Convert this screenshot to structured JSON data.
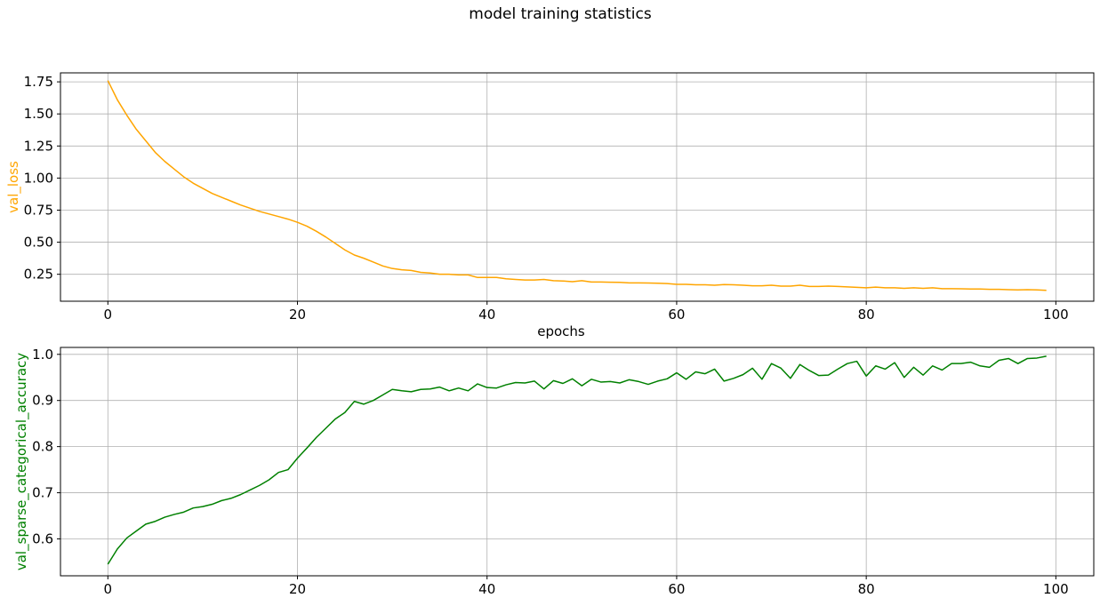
{
  "figure": {
    "suptitle": "model training statistics"
  },
  "chart_data": [
    {
      "type": "line",
      "xlabel": "epochs",
      "ylabel": "val_loss",
      "xlim": [
        -5,
        104
      ],
      "ylim": [
        0.04,
        1.82
      ],
      "xticks": [
        0,
        20,
        40,
        60,
        80,
        100
      ],
      "yticks": [
        0.25,
        0.5,
        0.75,
        1.0,
        1.25,
        1.5,
        1.75
      ],
      "ytick_labels": [
        "0.25",
        "0.50",
        "0.75",
        "1.00",
        "1.25",
        "1.50",
        "1.75"
      ],
      "grid": true,
      "series": [
        {
          "color": "#ffa500",
          "x": [
            0,
            1,
            2,
            3,
            4,
            5,
            6,
            7,
            8,
            9,
            10,
            11,
            12,
            13,
            14,
            15,
            16,
            17,
            18,
            19,
            20,
            21,
            22,
            23,
            24,
            25,
            26,
            27,
            28,
            29,
            30,
            31,
            32,
            33,
            34,
            35,
            36,
            37,
            38,
            39,
            40,
            41,
            42,
            43,
            44,
            45,
            46,
            47,
            48,
            49,
            50,
            51,
            52,
            53,
            54,
            55,
            56,
            57,
            58,
            59,
            60,
            61,
            62,
            63,
            64,
            65,
            66,
            67,
            68,
            69,
            70,
            71,
            72,
            73,
            74,
            75,
            76,
            77,
            78,
            79,
            80,
            81,
            82,
            83,
            84,
            85,
            86,
            87,
            88,
            89,
            90,
            91,
            92,
            93,
            94,
            95,
            96,
            97,
            98,
            99
          ],
          "values": [
            1.76,
            1.61,
            1.49,
            1.38,
            1.29,
            1.2,
            1.13,
            1.07,
            1.01,
            0.96,
            0.92,
            0.88,
            0.85,
            0.82,
            0.79,
            0.765,
            0.74,
            0.72,
            0.7,
            0.68,
            0.655,
            0.625,
            0.585,
            0.54,
            0.49,
            0.44,
            0.4,
            0.375,
            0.345,
            0.315,
            0.295,
            0.285,
            0.28,
            0.265,
            0.26,
            0.25,
            0.25,
            0.245,
            0.245,
            0.225,
            0.225,
            0.225,
            0.215,
            0.21,
            0.205,
            0.205,
            0.21,
            0.2,
            0.198,
            0.192,
            0.2,
            0.19,
            0.19,
            0.188,
            0.187,
            0.183,
            0.183,
            0.182,
            0.18,
            0.178,
            0.172,
            0.172,
            0.168,
            0.168,
            0.165,
            0.17,
            0.168,
            0.165,
            0.16,
            0.16,
            0.165,
            0.158,
            0.158,
            0.165,
            0.155,
            0.155,
            0.158,
            0.155,
            0.152,
            0.148,
            0.145,
            0.15,
            0.145,
            0.145,
            0.14,
            0.145,
            0.14,
            0.145,
            0.138,
            0.138,
            0.137,
            0.135,
            0.135,
            0.133,
            0.133,
            0.13,
            0.128,
            0.13,
            0.128,
            0.125
          ]
        }
      ]
    },
    {
      "type": "line",
      "xlabel": "",
      "ylabel": "val_sparse_categorical_accuracy",
      "xlim": [
        -5,
        104
      ],
      "ylim": [
        0.52,
        1.015
      ],
      "xticks": [
        0,
        20,
        40,
        60,
        80,
        100
      ],
      "yticks": [
        0.6,
        0.7,
        0.8,
        0.9,
        1.0
      ],
      "ytick_labels": [
        "0.6",
        "0.7",
        "0.8",
        "0.9",
        "1.0"
      ],
      "grid": true,
      "series": [
        {
          "color": "#008000",
          "x": [
            0,
            1,
            2,
            3,
            4,
            5,
            6,
            7,
            8,
            9,
            10,
            11,
            12,
            13,
            14,
            15,
            16,
            17,
            18,
            19,
            20,
            21,
            22,
            23,
            24,
            25,
            26,
            27,
            28,
            29,
            30,
            31,
            32,
            33,
            34,
            35,
            36,
            37,
            38,
            39,
            40,
            41,
            42,
            43,
            44,
            45,
            46,
            47,
            48,
            49,
            50,
            51,
            52,
            53,
            54,
            55,
            56,
            57,
            58,
            59,
            60,
            61,
            62,
            63,
            64,
            65,
            66,
            67,
            68,
            69,
            70,
            71,
            72,
            73,
            74,
            75,
            76,
            77,
            78,
            79,
            80,
            81,
            82,
            83,
            84,
            85,
            86,
            87,
            88,
            89,
            90,
            91,
            92,
            93,
            94,
            95,
            96,
            97,
            98,
            99
          ],
          "values": [
            0.545,
            0.578,
            0.602,
            0.617,
            0.632,
            0.638,
            0.647,
            0.653,
            0.658,
            0.667,
            0.67,
            0.675,
            0.683,
            0.688,
            0.696,
            0.706,
            0.716,
            0.728,
            0.744,
            0.75,
            0.775,
            0.797,
            0.82,
            0.84,
            0.86,
            0.874,
            0.898,
            0.892,
            0.9,
            0.912,
            0.924,
            0.921,
            0.919,
            0.924,
            0.925,
            0.929,
            0.921,
            0.927,
            0.921,
            0.936,
            0.928,
            0.927,
            0.934,
            0.939,
            0.938,
            0.942,
            0.925,
            0.943,
            0.937,
            0.947,
            0.932,
            0.946,
            0.94,
            0.941,
            0.938,
            0.945,
            0.941,
            0.935,
            0.942,
            0.947,
            0.96,
            0.946,
            0.962,
            0.958,
            0.968,
            0.942,
            0.948,
            0.956,
            0.97,
            0.946,
            0.98,
            0.97,
            0.948,
            0.978,
            0.965,
            0.954,
            0.955,
            0.968,
            0.98,
            0.985,
            0.953,
            0.975,
            0.968,
            0.982,
            0.95,
            0.972,
            0.955,
            0.975,
            0.966,
            0.98,
            0.98,
            0.983,
            0.975,
            0.972,
            0.987,
            0.991,
            0.98,
            0.991,
            0.992,
            0.996
          ]
        }
      ]
    }
  ]
}
